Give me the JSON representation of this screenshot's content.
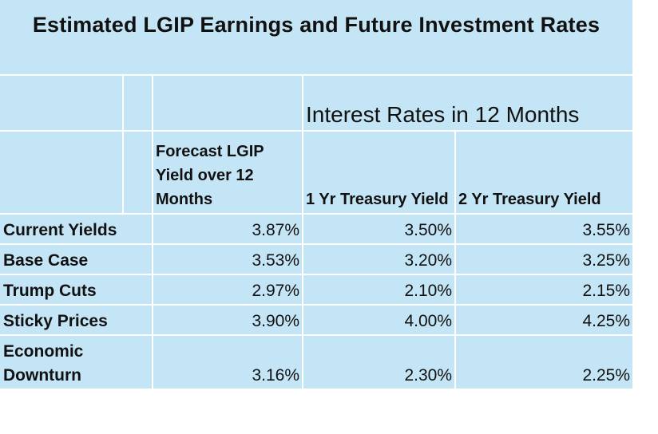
{
  "title": "Estimated LGIP Earnings and Future Investment Rates",
  "group_header": "Interest Rates in 12 Months",
  "columns": {
    "forecast": "Forecast LGIP Yield over 12 Months",
    "one_yr": "1 Yr Treasury Yield",
    "two_yr": "2 Yr Treasury Yield"
  },
  "rows": [
    {
      "label": "Current Yields",
      "forecast": "3.87%",
      "one_yr": "3.50%",
      "two_yr": "3.55%"
    },
    {
      "label": "Base Case",
      "forecast": "3.53%",
      "one_yr": "3.20%",
      "two_yr": "3.25%"
    },
    {
      "label": "Trump Cuts",
      "forecast": "2.97%",
      "one_yr": "2.10%",
      "two_yr": "2.15%"
    },
    {
      "label": "Sticky Prices",
      "forecast": "3.90%",
      "one_yr": "4.00%",
      "two_yr": "4.25%"
    },
    {
      "label": "Economic Downturn",
      "forecast": "3.16%",
      "one_yr": "2.30%",
      "two_yr": "2.25%"
    }
  ]
}
